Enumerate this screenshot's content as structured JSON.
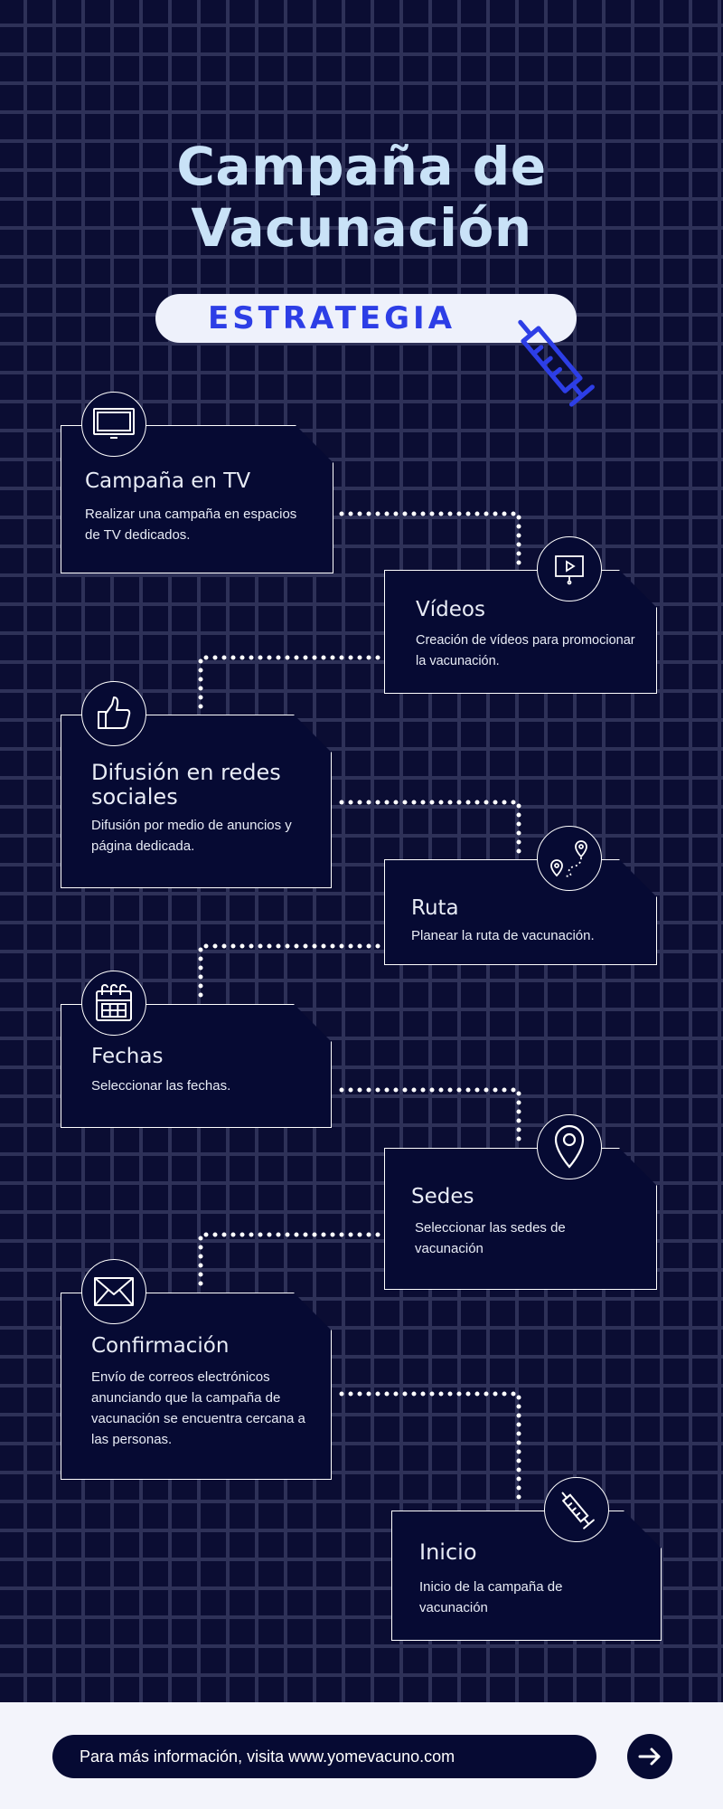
{
  "title": "Campaña de Vacunación",
  "subtitle": "ESTRATEGIA",
  "steps": [
    {
      "title": "Campaña en TV",
      "desc": "Realizar una campaña en espacios de TV dedicados.",
      "icon": "tv-icon"
    },
    {
      "title": "Vídeos",
      "desc": "Creación de vídeos para promocionar la vacunación.",
      "icon": "video-presentation-icon"
    },
    {
      "title": "Difusión en redes sociales",
      "desc": "Difusión por medio de anuncios y página dedicada.",
      "icon": "thumbs-up-icon"
    },
    {
      "title": "Ruta",
      "desc": "Planear la ruta de vacunación.",
      "icon": "route-map-icon"
    },
    {
      "title": "Fechas",
      "desc": "Seleccionar las fechas.",
      "icon": "calendar-icon"
    },
    {
      "title": "Sedes",
      "desc": "Seleccionar las sedes de vacunación",
      "icon": "location-pin-icon"
    },
    {
      "title": "Confirmación",
      "desc": "Envío de correos electrónicos anunciando que la campaña de vacunación se encuentra cercana a las personas.",
      "icon": "envelope-icon"
    },
    {
      "title": "Inicio",
      "desc": "Inicio de la campaña de vacunación",
      "icon": "syringe-icon"
    }
  ],
  "footer": {
    "text": "Para más información, visita www.yomevacuno.com",
    "button_icon": "arrow-right-icon"
  },
  "colors": {
    "background": "#0b0d33",
    "grid": "#2e3158",
    "card": "#060a33",
    "title": "#c9e2f7",
    "accent": "#2d3ee6",
    "footer_bg": "#f3f4fb"
  }
}
